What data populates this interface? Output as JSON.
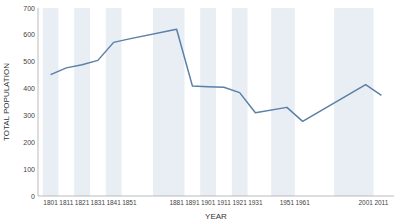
{
  "chart_data": {
    "type": "line",
    "x": [
      1801,
      1811,
      1821,
      1831,
      1841,
      1851,
      1881,
      1891,
      1901,
      1911,
      1921,
      1931,
      1951,
      1961,
      2001,
      2011
    ],
    "values": [
      452,
      477,
      489,
      505,
      572,
      585,
      621,
      410,
      407,
      405,
      385,
      310,
      330,
      278,
      415,
      375
    ],
    "color": "#5b7fa6",
    "xlabel": "YEAR",
    "ylabel": "TOTAL POPULATION",
    "xlim": [
      1793,
      2019
    ],
    "xticks": [
      1801,
      1811,
      1821,
      1831,
      1841,
      1851,
      1881,
      1891,
      1901,
      1911,
      1921,
      1931,
      1951,
      1961,
      2001,
      2011
    ],
    "ylim": [
      0,
      700
    ],
    "yticks": [
      0,
      100,
      200,
      300,
      400,
      500,
      600,
      700
    ],
    "grid": false
  }
}
